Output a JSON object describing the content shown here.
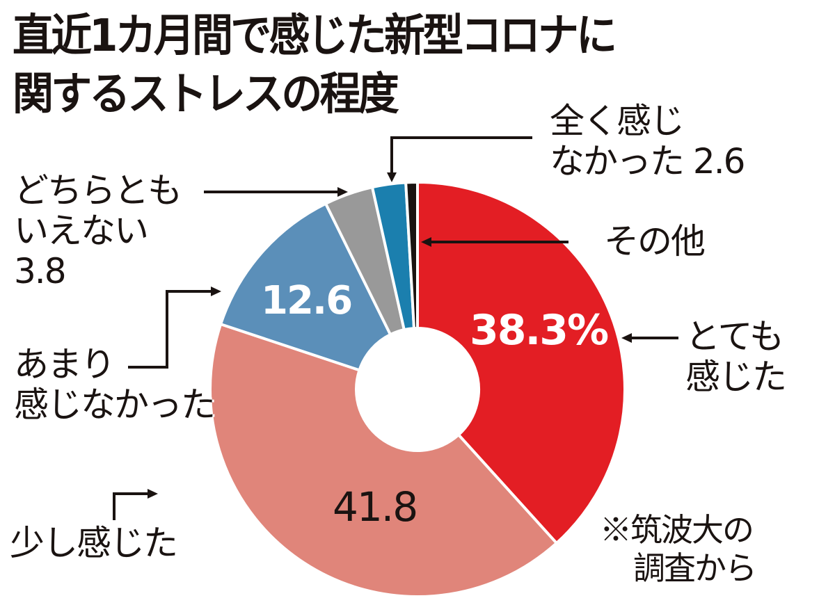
{
  "title": {
    "line1": "直近1カ月間で感じた新型コロナに",
    "line2": "関するストレスの程度"
  },
  "labels": {
    "very_line1": "とても",
    "very_line2": "感じた",
    "very_value": "38.3%",
    "little": "少し感じた",
    "little_value": "41.8",
    "not_much_line1": "あまり",
    "not_much_line2": "感じなかった",
    "not_much_value": "12.6",
    "neither_line1": "どちらとも",
    "neither_line2": "いえない",
    "neither_line3": "3.8",
    "none_line1": "全く感じ",
    "none_line2": "なかった 2.6",
    "other": "その他"
  },
  "source": {
    "line1": "※筑波大の",
    "line2": "調査から"
  },
  "colors": {
    "very": "#e31e24",
    "little": "#e0857a",
    "not_much": "#5b8fb9",
    "neither": "#999999",
    "none": "#1b7fae",
    "other": "#1a1311"
  },
  "chart_data": {
    "type": "pie",
    "subtype": "donut",
    "title": "直近1カ月間で感じた新型コロナに関するストレスの程度",
    "unit": "%",
    "start_angle": "12 o'clock, clockwise",
    "categories": [
      "とても感じた",
      "少し感じた",
      "あまり感じなかった",
      "どちらともいえない",
      "全く感じなかった",
      "その他"
    ],
    "values": [
      38.3,
      41.8,
      12.6,
      3.8,
      2.6,
      0.9
    ],
    "colors": [
      "#e31e24",
      "#e0857a",
      "#5b8fb9",
      "#999999",
      "#1b7fae",
      "#1a1311"
    ],
    "annotation": "※筑波大の調査から",
    "legend": "none (callout labels)"
  }
}
